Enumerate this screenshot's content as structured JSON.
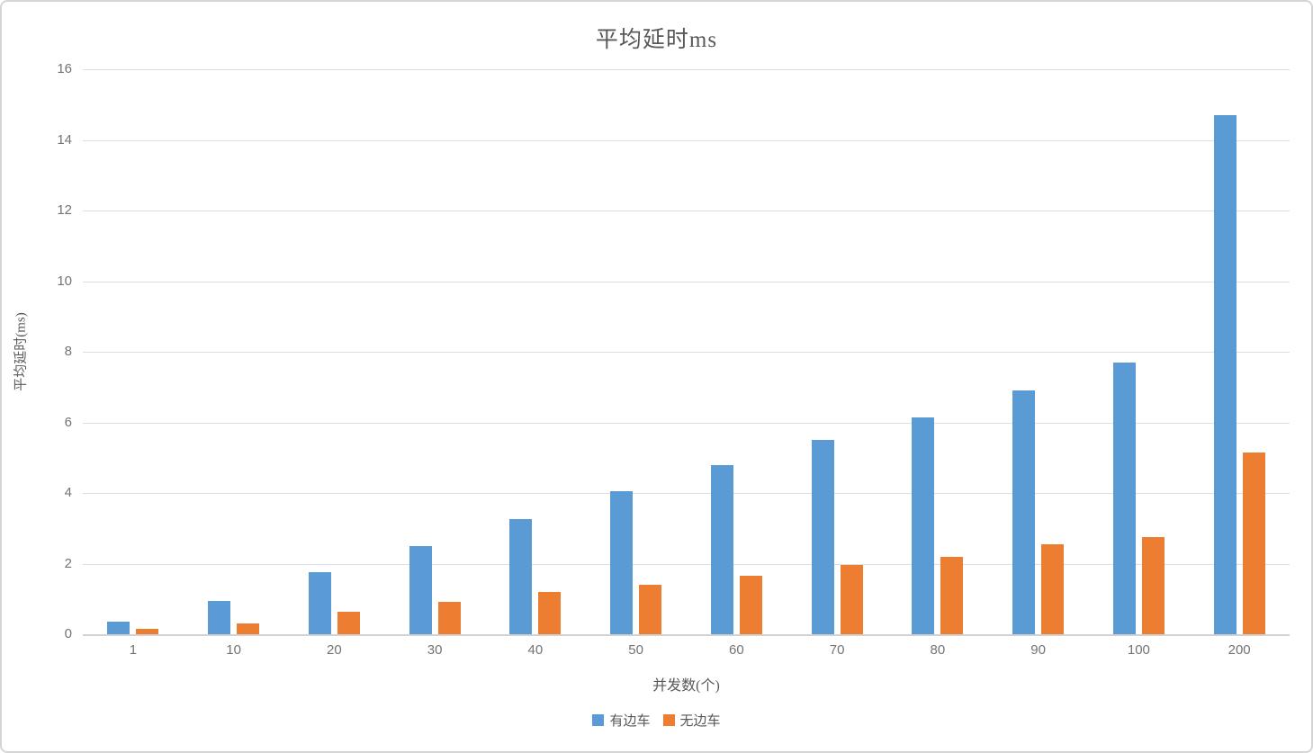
{
  "panel": {
    "background": "#ffffff",
    "border_color": "#d5d5d5"
  },
  "colors": {
    "series_blue": "#5B9BD5",
    "series_orange": "#ED7D31",
    "gridline": "#dedede",
    "axis_text": "#737373",
    "title_text": "#595959"
  },
  "chart_data": {
    "type": "bar",
    "title": "平均延时ms",
    "xlabel": "并发数(个)",
    "ylabel": "平均延时(ms)",
    "categories": [
      "1",
      "10",
      "20",
      "30",
      "40",
      "50",
      "60",
      "70",
      "80",
      "90",
      "100",
      "200"
    ],
    "series": [
      {
        "name": "有边车",
        "color": "#5B9BD5",
        "values": [
          0.35,
          0.95,
          1.75,
          2.5,
          3.25,
          4.05,
          4.78,
          5.5,
          6.15,
          6.9,
          7.7,
          14.7
        ]
      },
      {
        "name": "无边车",
        "color": "#ED7D31",
        "values": [
          0.15,
          0.3,
          0.65,
          0.92,
          1.2,
          1.4,
          1.65,
          1.95,
          2.2,
          2.55,
          2.75,
          5.15
        ]
      }
    ],
    "ylim": [
      0,
      16
    ],
    "yticks": [
      0,
      2,
      4,
      6,
      8,
      10,
      12,
      14,
      16
    ],
    "grid": true,
    "legend_position": "bottom"
  }
}
